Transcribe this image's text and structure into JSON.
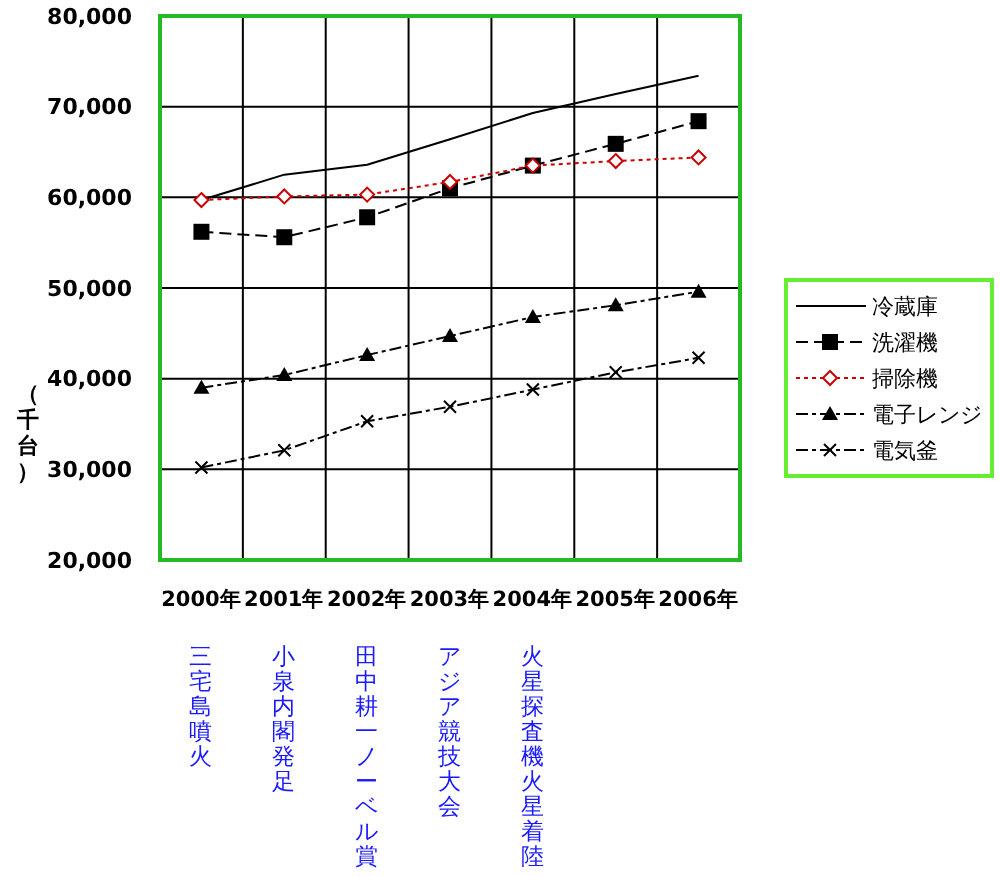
{
  "chart_data": {
    "type": "line",
    "ylabel": "（千台）",
    "categories": [
      "2000年",
      "2001年",
      "2002年",
      "2003年",
      "2004年",
      "2005年",
      "2006年"
    ],
    "series": [
      {
        "name": "冷蔵庫",
        "color": "#000000",
        "marker": "none",
        "line_style": "solid",
        "values": [
          59700,
          62500,
          63600,
          66400,
          69300,
          71400,
          73400
        ]
      },
      {
        "name": "洗濯機",
        "color": "#000000",
        "marker": "square",
        "line_style": "dashed",
        "values": [
          56200,
          55600,
          57800,
          61000,
          63500,
          65900,
          68400
        ]
      },
      {
        "name": "掃除機",
        "color": "#cc0000",
        "marker": "diamond",
        "line_style": "dotted",
        "values": [
          59700,
          60100,
          60300,
          61700,
          63500,
          64000,
          64400
        ]
      },
      {
        "name": "電子レンジ",
        "color": "#000000",
        "marker": "triangle",
        "line_style": "dashdot",
        "values": [
          39000,
          40400,
          42600,
          44700,
          46800,
          48100,
          49600
        ]
      },
      {
        "name": "電気釜",
        "color": "#000000",
        "marker": "cross",
        "line_style": "dashdot",
        "values": [
          30200,
          32100,
          35300,
          36900,
          38800,
          40700,
          42300
        ]
      }
    ],
    "ylim": [
      20000,
      80000
    ],
    "yticks": [
      {
        "value": 20000,
        "label": "20,000"
      },
      {
        "value": 30000,
        "label": "30,000"
      },
      {
        "value": 40000,
        "label": "40,000"
      },
      {
        "value": 50000,
        "label": "50,000"
      },
      {
        "value": 60000,
        "label": "60,000"
      },
      {
        "value": 70000,
        "label": "70,000"
      },
      {
        "value": 80000,
        "label": "80,000"
      }
    ],
    "grid": true,
    "legend": "right",
    "annotations": [
      "三宅島噴火",
      "小泉内閣発足",
      "田中耕一ノーベル賞",
      "アジア競技大会",
      "火星探査機火星着陸"
    ]
  }
}
